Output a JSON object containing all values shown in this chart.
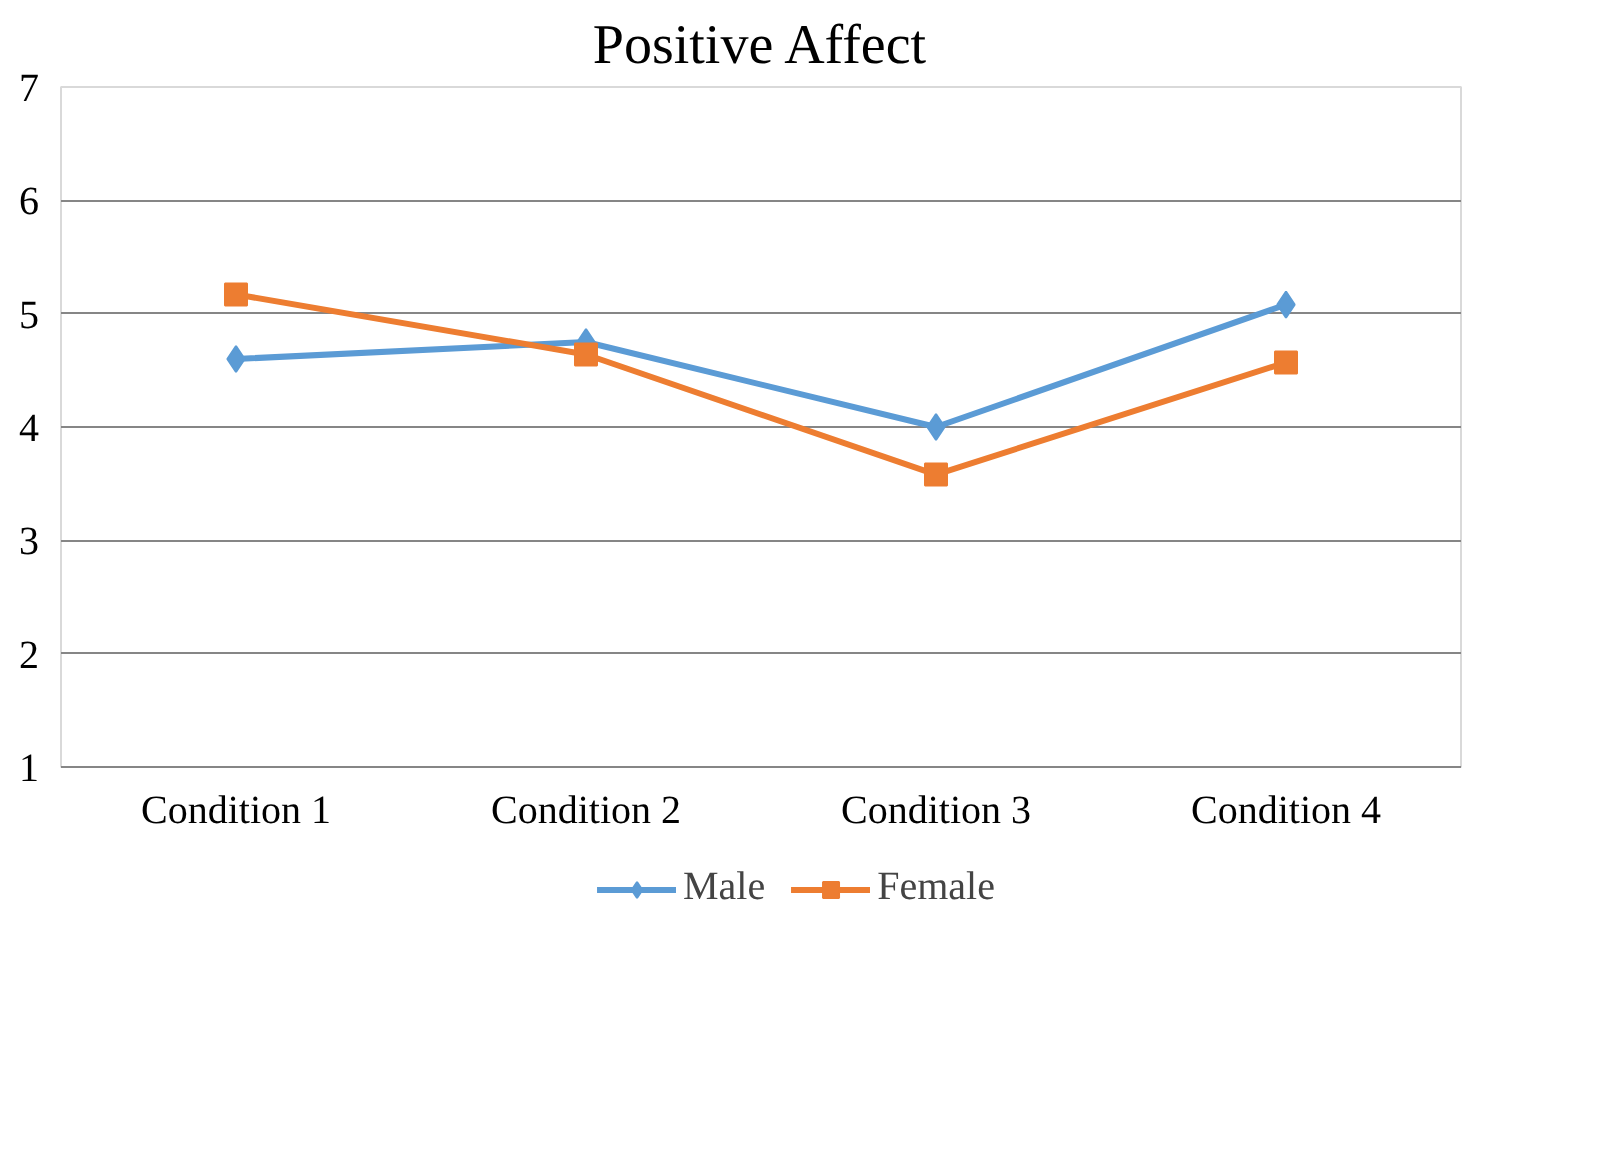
{
  "chart_data": {
    "type": "line",
    "title": "Positive Affect",
    "categories": [
      "Condition 1",
      "Condition 2",
      "Condition 3",
      "Condition 4"
    ],
    "series": [
      {
        "name": "Male",
        "color": "#5b9bd5",
        "marker": "diamond",
        "values": [
          4.6,
          4.75,
          4.0,
          5.08
        ]
      },
      {
        "name": "Female",
        "color": "#ed7d31",
        "marker": "square",
        "values": [
          5.17,
          4.64,
          3.58,
          4.57
        ]
      }
    ],
    "ylim": [
      1,
      7
    ],
    "yticks": [
      1,
      2,
      3,
      4,
      5,
      6,
      7
    ],
    "grid": "y",
    "legend": "bottom",
    "line_style": "solid"
  }
}
